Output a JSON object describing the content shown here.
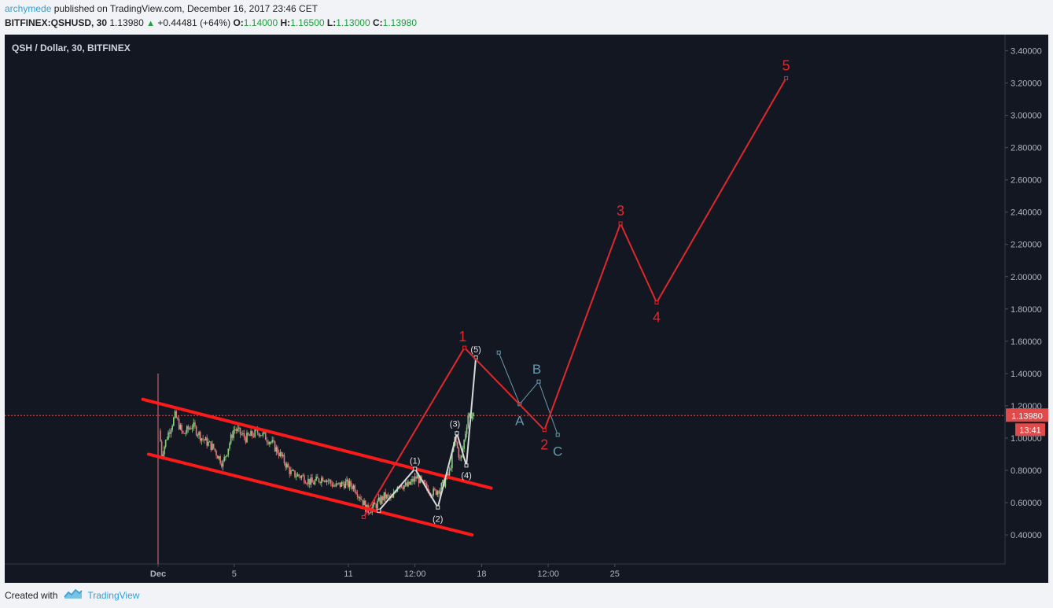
{
  "header": {
    "author": "archymede",
    "published_text": "published on TradingView.com, December 16, 2017 23:46 CET",
    "symbol": "BITFINEX:QSHUSD, 30",
    "last": "1.13980",
    "change": "+0.44481 (+64%)",
    "open_label": "O:",
    "open": "1.14000",
    "high_label": "H:",
    "high": "1.16500",
    "low_label": "L:",
    "low": "1.13000",
    "close_label": "C:",
    "close": "1.13980"
  },
  "footer": {
    "created_with": "Created with",
    "brand": "TradingView"
  },
  "colors": {
    "background": "#131722",
    "axis_text": "#b2b5be",
    "wave_red": "#e0282c",
    "channel_red": "#ff1a1a",
    "subwave_white": "#d8d8d8",
    "abc_teal": "#6a99ad",
    "candle_up": "#8ad07f",
    "candle_down": "#e8737a",
    "price_line": "#e04a4a"
  },
  "chart_data": {
    "type": "candlestick",
    "title": "QSH / Dollar, 30, BITFINEX",
    "y_ticks": [
      "3.40000",
      "3.20000",
      "3.00000",
      "2.80000",
      "2.60000",
      "2.40000",
      "2.20000",
      "2.00000",
      "1.80000",
      "1.60000",
      "1.40000",
      "1.20000",
      "1.00000",
      "0.80000",
      "0.60000",
      "0.40000"
    ],
    "ylim": [
      0.22,
      3.5
    ],
    "x_ticks": [
      {
        "label": "Dec",
        "t": 0,
        "bold": true
      },
      {
        "label": "5",
        "t": 4
      },
      {
        "label": "11",
        "t": 10
      },
      {
        "label": "12:00",
        "t": 13.5
      },
      {
        "label": "18",
        "t": 17
      },
      {
        "label": "12:00",
        "t": 20.5
      },
      {
        "label": "25",
        "t": 24
      }
    ],
    "xlim": [
      -8,
      44
    ],
    "price_line": 1.1398,
    "price_badge": "1.13980",
    "time_badge": "13:41",
    "price_path": [
      [
        0,
        1.38
      ],
      [
        0.15,
        0.88
      ],
      [
        0.5,
        1.02
      ],
      [
        0.9,
        1.14
      ],
      [
        1.3,
        1.02
      ],
      [
        1.8,
        1.08
      ],
      [
        2.3,
        1.0
      ],
      [
        2.9,
        0.94
      ],
      [
        3.4,
        0.84
      ],
      [
        4.0,
        1.06
      ],
      [
        4.6,
        1.0
      ],
      [
        5.3,
        1.04
      ],
      [
        5.9,
        0.98
      ],
      [
        6.4,
        0.9
      ],
      [
        7.0,
        0.78
      ],
      [
        7.6,
        0.76
      ],
      [
        8.1,
        0.72
      ],
      [
        8.7,
        0.76
      ],
      [
        9.3,
        0.7
      ],
      [
        9.8,
        0.72
      ],
      [
        10.3,
        0.7
      ],
      [
        10.7,
        0.62
      ],
      [
        11.0,
        0.55
      ],
      [
        11.4,
        0.58
      ],
      [
        11.9,
        0.64
      ],
      [
        12.3,
        0.62
      ],
      [
        12.6,
        0.72
      ],
      [
        13.1,
        0.7
      ],
      [
        13.6,
        0.76
      ],
      [
        14.0,
        0.7
      ],
      [
        14.5,
        0.66
      ],
      [
        14.9,
        0.7
      ],
      [
        15.3,
        0.78
      ],
      [
        15.6,
        1.0
      ],
      [
        15.9,
        0.85
      ],
      [
        16.3,
        1.15
      ],
      [
        16.6,
        1.13
      ]
    ],
    "channel_lines": [
      {
        "from": [
          -0.8,
          1.24
        ],
        "to": [
          17.5,
          0.69
        ]
      },
      {
        "from": [
          -0.5,
          0.9
        ],
        "to": [
          16.5,
          0.4
        ]
      }
    ],
    "primary_wave": {
      "points": [
        [
          10.8,
          0.51
        ],
        [
          16.1,
          1.56
        ],
        [
          20.3,
          1.05
        ],
        [
          24.3,
          2.33
        ],
        [
          26.2,
          1.84
        ],
        [
          33.0,
          3.23
        ]
      ],
      "labels": [
        {
          "text": "1",
          "x": 16.0,
          "y": 1.63
        },
        {
          "text": "2",
          "x": 20.3,
          "y": 0.96
        },
        {
          "text": "3",
          "x": 24.3,
          "y": 2.41
        },
        {
          "text": "4",
          "x": 26.2,
          "y": 1.75
        },
        {
          "text": "5",
          "x": 33.0,
          "y": 3.31
        }
      ]
    },
    "sub_wave": {
      "points": [
        [
          11.6,
          0.55
        ],
        [
          13.5,
          0.81
        ],
        [
          14.7,
          0.57
        ],
        [
          15.7,
          1.03
        ],
        [
          16.2,
          0.83
        ],
        [
          16.7,
          1.5
        ]
      ],
      "labels": [
        {
          "text": "(1)",
          "x": 13.5,
          "y": 0.86
        },
        {
          "text": "(2)",
          "x": 14.7,
          "y": 0.5
        },
        {
          "text": "(3)",
          "x": 15.6,
          "y": 1.09
        },
        {
          "text": "(4)",
          "x": 16.2,
          "y": 0.77
        },
        {
          "text": "(5)",
          "x": 16.7,
          "y": 1.55
        }
      ]
    },
    "abc_wave": {
      "points": [
        [
          17.9,
          1.53
        ],
        [
          19.0,
          1.21
        ],
        [
          20.0,
          1.35
        ],
        [
          21.0,
          1.02
        ]
      ],
      "labels": [
        {
          "text": "A",
          "x": 19.0,
          "y": 1.11
        },
        {
          "text": "B",
          "x": 19.9,
          "y": 1.43
        },
        {
          "text": "C",
          "x": 21.0,
          "y": 0.92
        }
      ]
    }
  }
}
